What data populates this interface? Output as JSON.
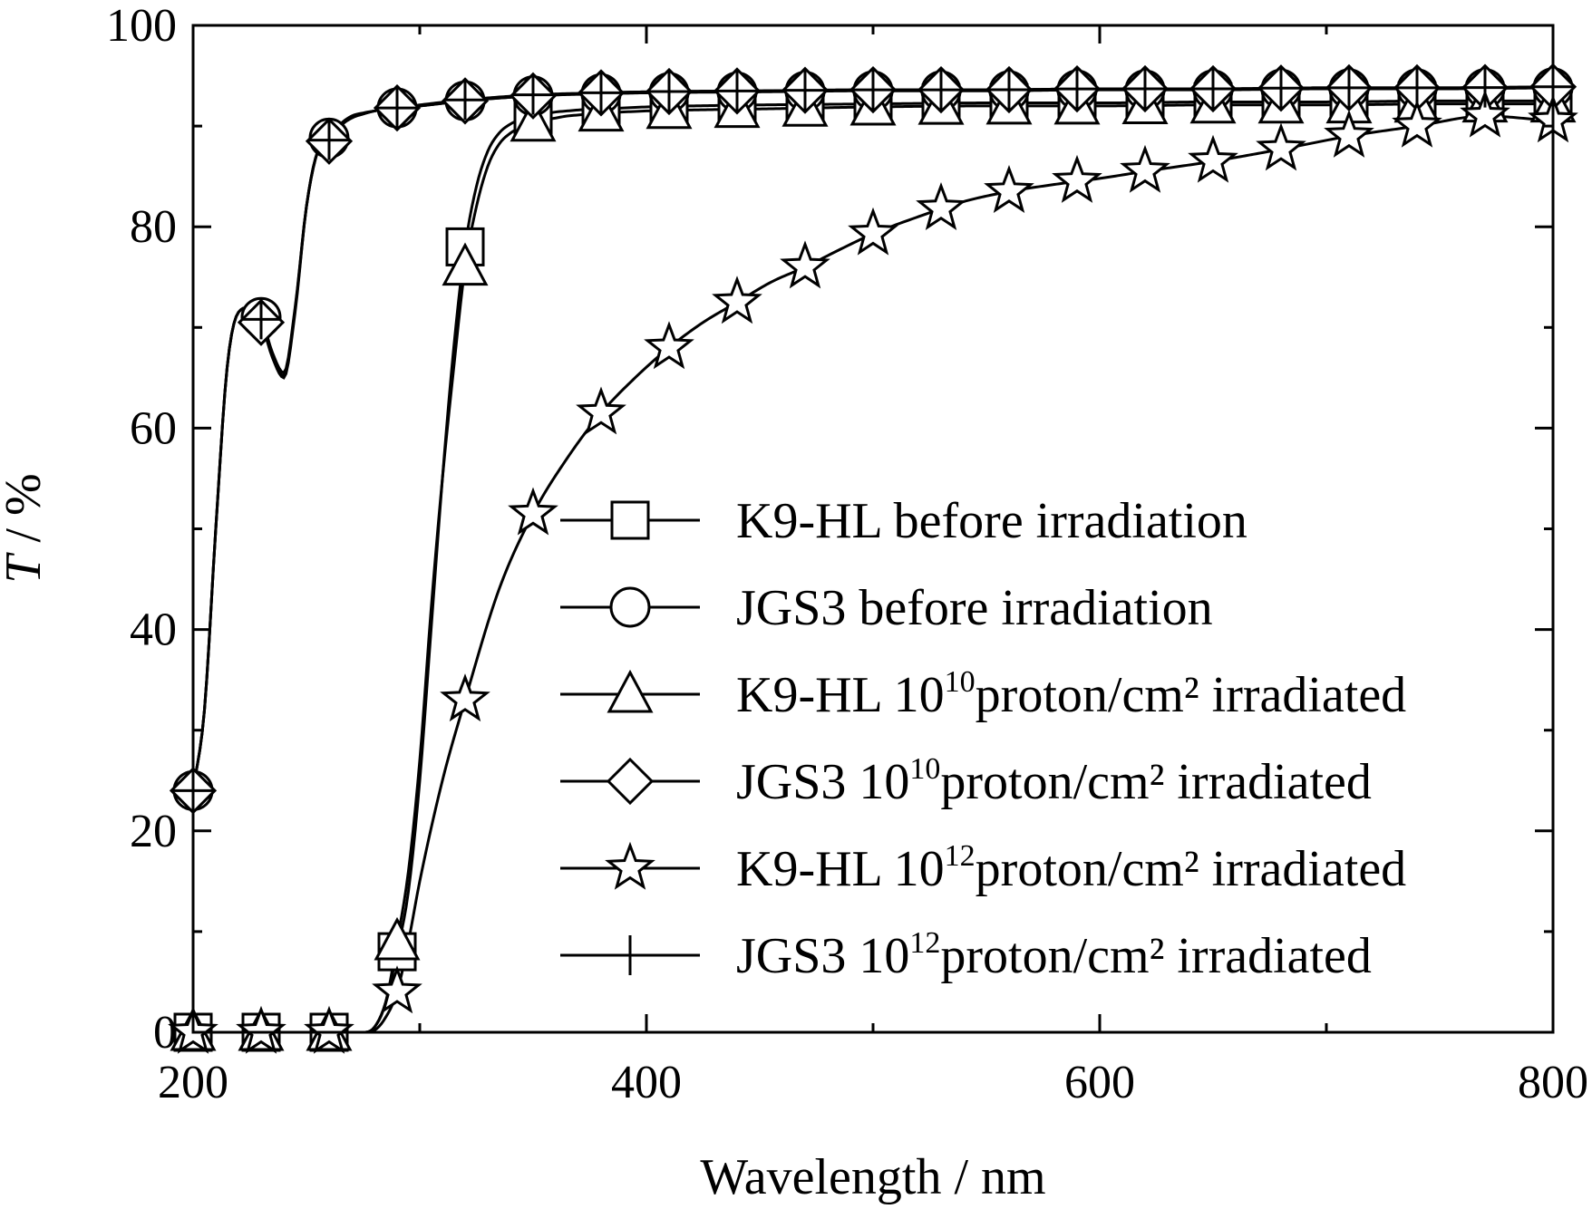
{
  "chart_data": {
    "type": "line",
    "xlabel": "Wavelength / nm",
    "ylabel_italic": "T",
    "ylabel_rest": " / %",
    "xlim": [
      200,
      800
    ],
    "ylim": [
      0,
      100
    ],
    "x_ticks": [
      200,
      400,
      600,
      800
    ],
    "x_minor_ticks": [
      300,
      500,
      700
    ],
    "y_ticks": [
      0,
      20,
      40,
      60,
      80,
      100
    ],
    "y_minor_ticks": [
      10,
      30,
      50,
      70,
      90
    ],
    "grid": false,
    "legend_position": "center-right",
    "series": [
      {
        "key": "k9_before",
        "name_pre": "K9-HL before irradiation",
        "name_sup": "",
        "name_post": "",
        "marker": "square",
        "x": [
          200,
          230,
          260,
          275,
          280,
          285,
          290,
          295,
          300,
          305,
          310,
          315,
          320,
          325,
          330,
          335,
          340,
          345,
          350,
          355,
          360,
          365,
          370,
          380,
          390,
          400,
          420,
          450,
          500,
          550,
          600,
          650,
          700,
          750,
          800
        ],
        "y": [
          0,
          0,
          0,
          0,
          0.5,
          3,
          8,
          14,
          25,
          40,
          55,
          68,
          78,
          84,
          87.5,
          89.3,
          90.2,
          90.7,
          91.0,
          91.2,
          91.4,
          91.5,
          91.6,
          91.7,
          91.8,
          91.9,
          92.0,
          92.1,
          92.2,
          92.3,
          92.3,
          92.4,
          92.4,
          92.5,
          92.5
        ],
        "marker_x": [
          200,
          230,
          260,
          290,
          320,
          350,
          380,
          410,
          440,
          470,
          500,
          530,
          560,
          590,
          620,
          650,
          680,
          710,
          740,
          770,
          800
        ]
      },
      {
        "key": "jgs3_before",
        "name_pre": "JGS3 before irradiation",
        "name_sup": "",
        "name_post": "",
        "marker": "circle",
        "x": [
          200,
          205,
          210,
          215,
          220,
          225,
          230,
          235,
          240,
          245,
          250,
          255,
          260,
          265,
          270,
          275,
          280,
          290,
          300,
          320,
          350,
          380,
          400,
          450,
          500,
          550,
          600,
          650,
          700,
          750,
          800
        ],
        "y": [
          24,
          32,
          50,
          66,
          71.5,
          72,
          71,
          67.5,
          65.5,
          72,
          82,
          87.5,
          88.8,
          90.2,
          91.0,
          91.3,
          91.5,
          91.8,
          92.0,
          92.5,
          93.0,
          93.2,
          93.3,
          93.4,
          93.5,
          93.5,
          93.6,
          93.6,
          93.7,
          93.7,
          93.8
        ],
        "marker_x": [
          200,
          230,
          260,
          290,
          320,
          350,
          380,
          410,
          440,
          470,
          500,
          530,
          560,
          590,
          620,
          650,
          680,
          710,
          740,
          770,
          800
        ]
      },
      {
        "key": "k9_1e10",
        "name_pre": "K9-HL 10",
        "name_sup": "10",
        "name_post": "proton/cm² irradiated",
        "marker": "triangle",
        "x": [
          200,
          230,
          260,
          275,
          280,
          285,
          290,
          295,
          300,
          305,
          310,
          315,
          320,
          325,
          330,
          335,
          340,
          345,
          350,
          355,
          360,
          365,
          370,
          380,
          390,
          400,
          420,
          450,
          500,
          550,
          600,
          650,
          700,
          750,
          800
        ],
        "y": [
          0,
          0,
          0,
          0,
          0.5,
          3,
          9,
          16,
          27,
          42,
          55,
          66,
          76,
          82,
          86,
          88.2,
          89.3,
          89.9,
          90.3,
          90.6,
          90.8,
          91.0,
          91.1,
          91.3,
          91.4,
          91.5,
          91.6,
          91.7,
          91.9,
          92.0,
          92.0,
          92.1,
          92.1,
          92.2,
          92.2
        ],
        "marker_x": [
          200,
          230,
          260,
          290,
          320,
          350,
          380,
          410,
          440,
          470,
          500,
          530,
          560,
          590,
          620,
          650,
          680,
          710,
          740,
          770,
          800
        ]
      },
      {
        "key": "jgs3_1e10",
        "name_pre": "JGS3 10",
        "name_sup": "10",
        "name_post": "proton/cm² irradiated",
        "marker": "diamond",
        "x": [
          200,
          205,
          210,
          215,
          220,
          225,
          230,
          235,
          240,
          245,
          250,
          255,
          260,
          265,
          270,
          275,
          280,
          290,
          300,
          320,
          350,
          380,
          400,
          450,
          500,
          550,
          600,
          650,
          700,
          750,
          800
        ],
        "y": [
          24,
          32,
          50,
          66,
          71.5,
          72,
          70.5,
          67,
          65,
          71.5,
          82,
          87.5,
          88.5,
          90.0,
          90.8,
          91.2,
          91.5,
          91.8,
          92.0,
          92.5,
          93.0,
          93.3,
          93.4,
          93.5,
          93.6,
          93.6,
          93.7,
          93.7,
          93.8,
          93.8,
          93.9
        ],
        "marker_x": [
          200,
          230,
          260,
          290,
          320,
          350,
          380,
          410,
          440,
          470,
          500,
          530,
          560,
          590,
          620,
          650,
          680,
          710,
          740,
          770,
          800
        ]
      },
      {
        "key": "k9_1e12",
        "name_pre": "K9-HL 10",
        "name_sup": "12",
        "name_post": "proton/cm² irradiated",
        "marker": "star",
        "x": [
          200,
          230,
          260,
          275,
          280,
          285,
          290,
          295,
          300,
          310,
          320,
          335,
          350,
          365,
          380,
          395,
          410,
          425,
          440,
          455,
          470,
          485,
          500,
          520,
          540,
          560,
          580,
          600,
          620,
          650,
          680,
          710,
          740,
          770,
          800
        ],
        "y": [
          0,
          0,
          0,
          0,
          0.2,
          1.5,
          4,
          9,
          15,
          25,
          33,
          44,
          51.5,
          57,
          61.5,
          65,
          68,
          70.5,
          72.5,
          74.5,
          76,
          77.7,
          79.3,
          81,
          82.5,
          83.5,
          84.2,
          84.8,
          85.5,
          86.5,
          87.7,
          89,
          90,
          91,
          90.5
        ],
        "marker_x": [
          200,
          230,
          260,
          290,
          320,
          350,
          380,
          410,
          440,
          470,
          500,
          530,
          560,
          590,
          620,
          650,
          680,
          710,
          740,
          770,
          800
        ]
      },
      {
        "key": "jgs3_1e12",
        "name_pre": "JGS3 10",
        "name_sup": "12",
        "name_post": "proton/cm² irradiated",
        "marker": "plus",
        "x": [
          200,
          205,
          210,
          215,
          220,
          225,
          230,
          235,
          240,
          245,
          250,
          255,
          260,
          265,
          270,
          275,
          280,
          290,
          300,
          320,
          350,
          380,
          400,
          450,
          500,
          550,
          600,
          650,
          700,
          750,
          800
        ],
        "y": [
          24,
          32,
          50,
          66,
          71.5,
          72,
          70.8,
          67.2,
          65.2,
          71.8,
          82,
          87.5,
          88.6,
          90.1,
          90.9,
          91.2,
          91.5,
          91.8,
          92.1,
          92.6,
          93.1,
          93.3,
          93.4,
          93.5,
          93.6,
          93.6,
          93.7,
          93.7,
          93.8,
          93.8,
          93.9
        ],
        "marker_x": [
          200,
          230,
          260,
          290,
          320,
          350,
          380,
          410,
          440,
          470,
          500,
          530,
          560,
          590,
          620,
          650,
          680,
          710,
          740,
          770,
          800
        ]
      }
    ]
  }
}
